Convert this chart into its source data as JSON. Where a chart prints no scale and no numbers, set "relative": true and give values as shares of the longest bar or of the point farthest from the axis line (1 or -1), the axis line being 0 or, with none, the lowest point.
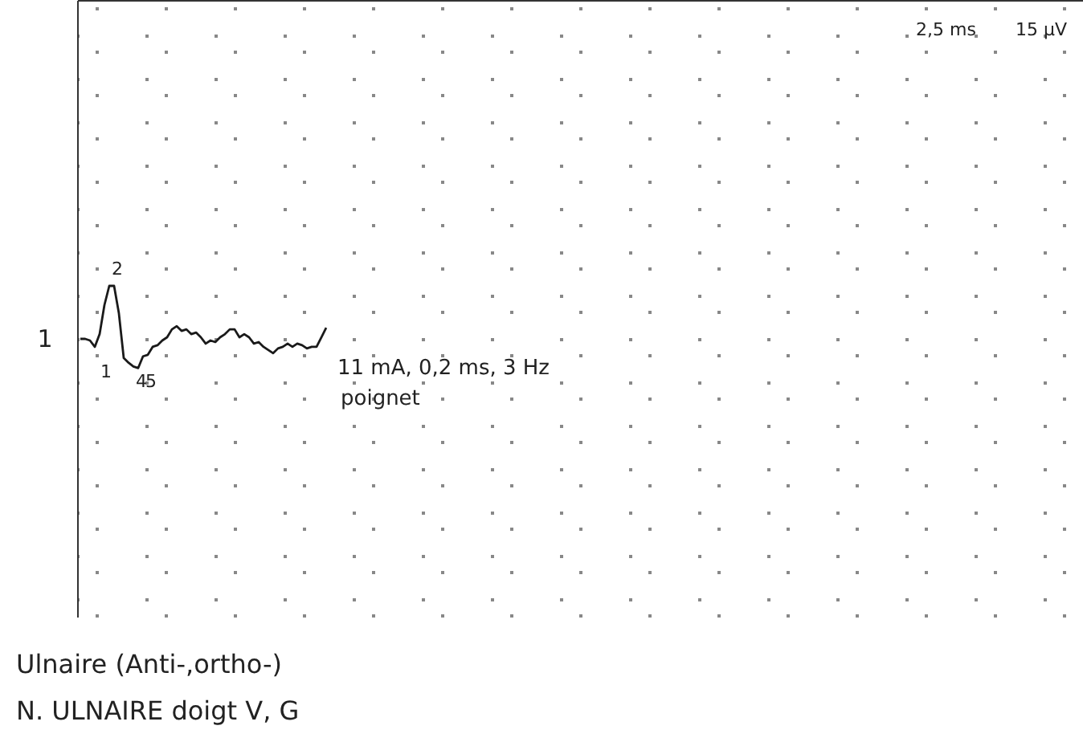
{
  "chart_data": {
    "type": "line",
    "relative": true,
    "grid": true,
    "line_style": "solid",
    "marker": "none",
    "categories": [
      null,
      null,
      null,
      null,
      null,
      null,
      null,
      null,
      null,
      null,
      null,
      null,
      null,
      null,
      null,
      null,
      null,
      null,
      null,
      null,
      null,
      null,
      null,
      null,
      null,
      null,
      null,
      null,
      null,
      null,
      null,
      null,
      null,
      null,
      null,
      null,
      null,
      null,
      null,
      null,
      null,
      null,
      null,
      null,
      null,
      null,
      null,
      null,
      null,
      null,
      null,
      null
    ],
    "series": [
      {
        "name": "1",
        "color": "#1a1a1a",
        "values": [
          0,
          0,
          -0.03,
          -0.15,
          0.09,
          0.64,
          1,
          1,
          0.48,
          -0.36,
          -0.45,
          -0.52,
          -0.55,
          -0.33,
          -0.3,
          -0.15,
          -0.12,
          -0.03,
          0.03,
          0.18,
          0.24,
          0.15,
          0.18,
          0.09,
          0.12,
          0.03,
          -0.09,
          -0.03,
          -0.06,
          0.03,
          0.09,
          0.18,
          0.18,
          0.03,
          0.09,
          0.03,
          -0.09,
          -0.06,
          -0.15,
          -0.21,
          -0.27,
          -0.18,
          -0.15,
          -0.09,
          -0.15,
          -0.09,
          -0.12,
          -0.18,
          -0.15,
          -0.15,
          0.03,
          0.21
        ]
      }
    ],
    "annotations": [
      "1",
      "2",
      "4",
      "5",
      "11 mA, 0,2 ms, 3 Hz",
      "poignet",
      "2,5 ms",
      "15 µV",
      "Ulnaire (Anti-,ortho-)",
      "N. ULNAIRE doigt V, G"
    ]
  }
}
